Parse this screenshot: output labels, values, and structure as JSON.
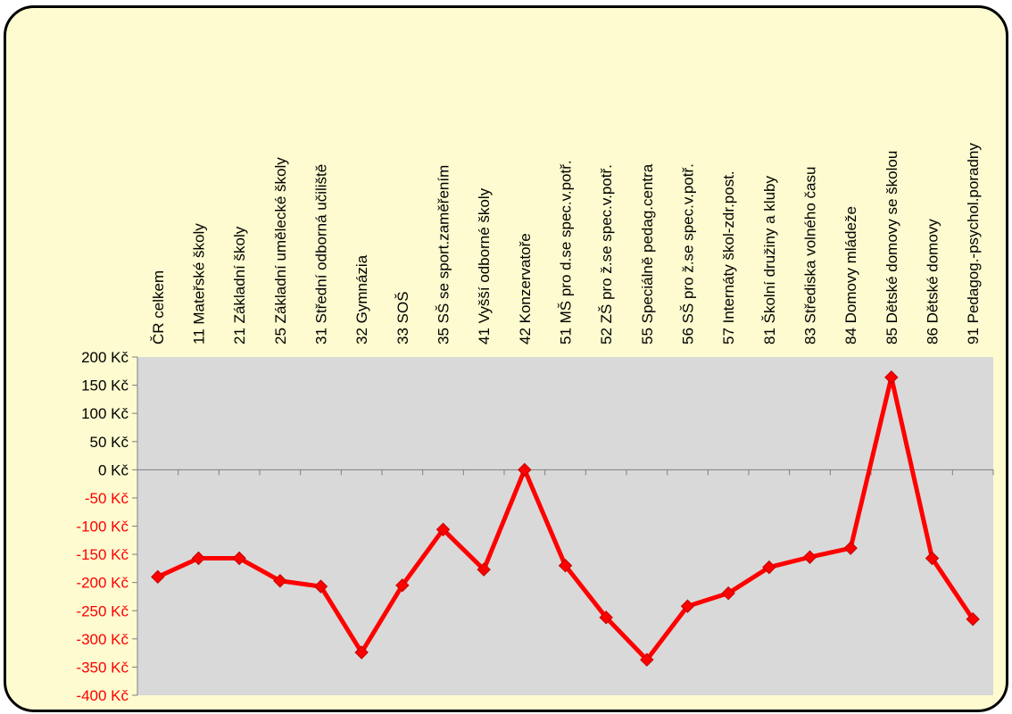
{
  "chart_data": {
    "type": "line",
    "title": "",
    "xlabel": "",
    "ylabel": "",
    "ylim": [
      -400,
      200
    ],
    "ytick_step": 50,
    "currency_suffix": " Kč",
    "plot_background": "#d9d9d9",
    "frame_background": "#fdfbcf",
    "negative_label_color": "#ff0000",
    "positive_label_color": "#000000",
    "legend": "none",
    "grid": false,
    "categories": [
      "ČR celkem",
      "11 Mateřské školy",
      "21 Základní školy",
      "25 Základní umělecké školy",
      "31 Střední odborná učiliště",
      "32 Gymnázia",
      "33 SOŠ",
      "35 SŠ se sport.zaměřením",
      "41 Vyšší odborné školy",
      "42 Konzervatoře",
      "51 MŠ pro d.se spec.v.potř.",
      "52 ZŠ pro ž.se spec.v.potř.",
      "55 Speciálně pedag.centra",
      "56 SŠ pro ž.se spec.v.potř.",
      "57 Internáty škol-zdr.post.",
      "81 Školní družiny a kluby",
      "83 Střediska volného času",
      "84 Domovy mládeže",
      "85 Dětské domovy se školou",
      "86 Dětské domovy",
      "91 Pedagog.-psychol.poradny"
    ],
    "series": [
      {
        "color": "#ff0000",
        "marker": "diamond",
        "values": [
          -190,
          -157,
          -157,
          -197,
          -207,
          -324,
          -205,
          -106,
          -177,
          0,
          -170,
          -262,
          -337,
          -242,
          -219,
          -173,
          -155,
          -139,
          164,
          -157,
          -265
        ]
      }
    ]
  }
}
